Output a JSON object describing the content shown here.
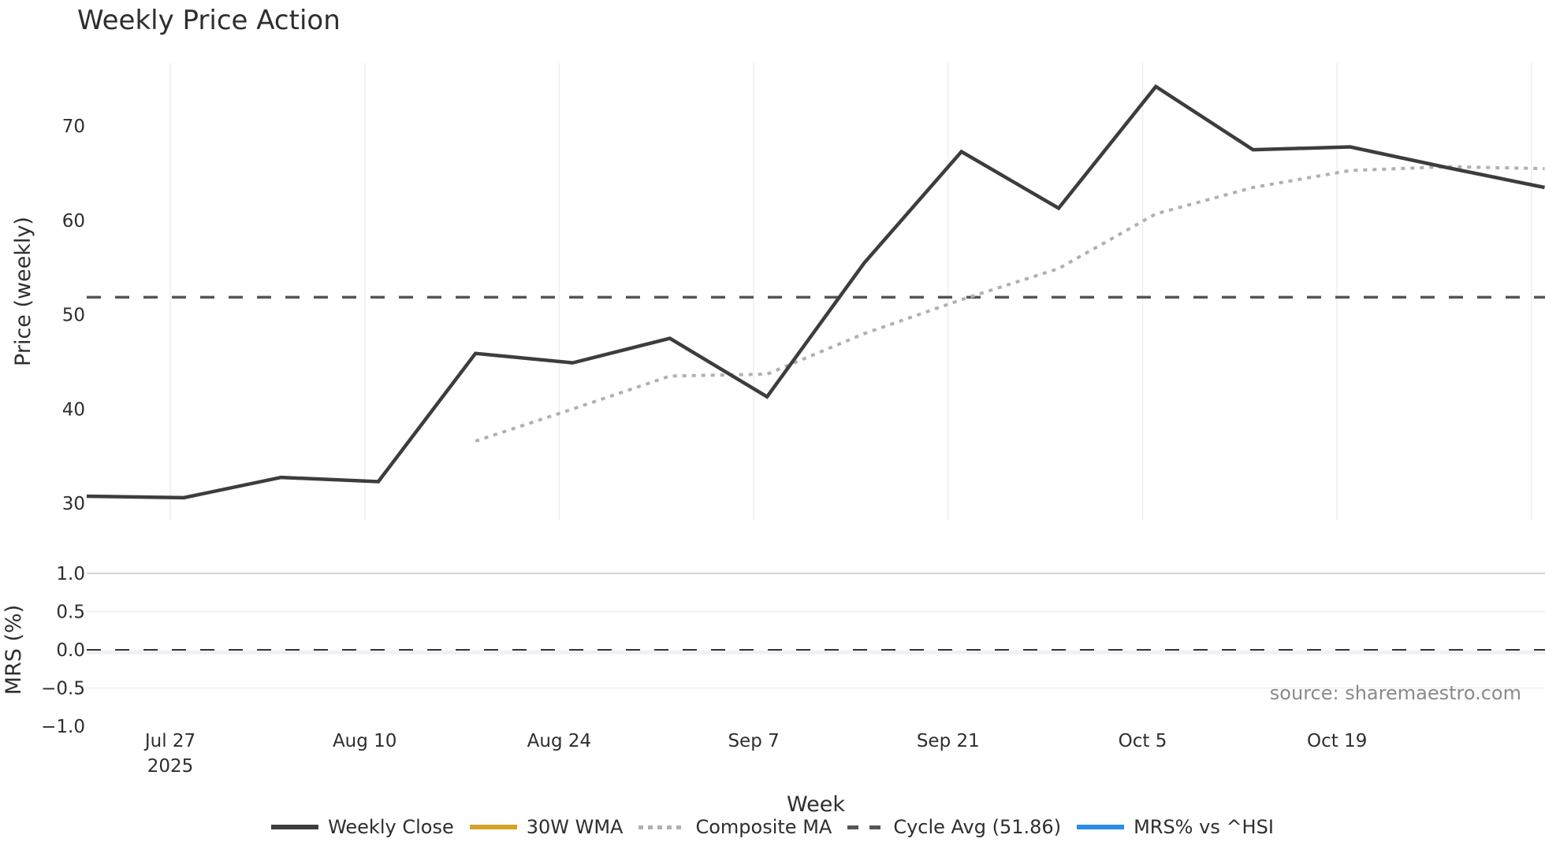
{
  "title": "Weekly Price Action",
  "source": "source: sharemaestro.com",
  "xlabel": "Week",
  "colors": {
    "weekly_close": "#3d3d3d",
    "wma30": "#d4a12a",
    "composite_ma": "#b0b0b0",
    "cycle_avg": "#555555",
    "mrs": "#2a8ce6",
    "grid": "#eceef1"
  },
  "legend": [
    {
      "label": "Weekly Close",
      "style": "solid",
      "color": "#3d3d3d"
    },
    {
      "label": "30W WMA",
      "style": "solid",
      "color": "#d4a12a"
    },
    {
      "label": "Composite MA",
      "style": "dotted",
      "color": "#b0b0b0"
    },
    {
      "label": "Cycle Avg (51.86)",
      "style": "dashed",
      "color": "#555555"
    },
    {
      "label": "MRS% vs ^HSI",
      "style": "solid",
      "color": "#2a8ce6"
    }
  ],
  "chart_data": [
    {
      "type": "line",
      "title": "Weekly Price Action",
      "xlabel": "Week",
      "ylabel": "Price (weekly)",
      "ylim": [
        27.5,
        76
      ],
      "yticks": [
        30,
        40,
        50,
        60,
        70
      ],
      "xticks": [
        {
          "label": "Jul 27",
          "sub": "2025",
          "date": "2025-07-27"
        },
        {
          "label": "Aug 10",
          "date": "2025-08-10"
        },
        {
          "label": "Aug 24",
          "date": "2025-08-24"
        },
        {
          "label": "Sep 7",
          "date": "2025-09-07"
        },
        {
          "label": "Sep 21",
          "date": "2025-09-21"
        },
        {
          "label": "Oct 5",
          "date": "2025-10-05"
        },
        {
          "label": "Oct 19",
          "date": "2025-10-19"
        },
        {
          "label": "",
          "date": "2025-11-02"
        }
      ],
      "grid": true,
      "legend_position": "bottom",
      "x": [
        "2025-07-21",
        "2025-07-28",
        "2025-08-04",
        "2025-08-11",
        "2025-08-18",
        "2025-08-25",
        "2025-09-01",
        "2025-09-08",
        "2025-09-15",
        "2025-09-22",
        "2025-09-29",
        "2025-10-06",
        "2025-10-13",
        "2025-10-20",
        "2025-10-27",
        "2025-11-03"
      ],
      "series": [
        {
          "name": "Weekly Close",
          "style": "solid",
          "values": [
            30.75,
            30.6,
            32.75,
            32.3,
            45.9,
            44.9,
            47.5,
            41.3,
            55.5,
            67.3,
            61.3,
            74.2,
            67.5,
            67.8,
            65.6,
            63.5
          ]
        },
        {
          "name": "30W WMA",
          "style": "solid",
          "values": []
        },
        {
          "name": "Composite MA",
          "style": "dotted",
          "values": [
            null,
            null,
            null,
            null,
            36.6,
            40.0,
            43.5,
            43.7,
            48.0,
            51.6,
            54.9,
            60.7,
            63.5,
            65.3,
            65.7,
            65.5
          ]
        },
        {
          "name": "Cycle Avg (51.86)",
          "style": "dashed",
          "constant": 51.86
        }
      ]
    },
    {
      "type": "line",
      "ylabel": "MRS (%)",
      "ylim": [
        -1.0,
        1.0
      ],
      "yticks": [
        "1.0",
        "0.5",
        "0.0",
        "−0.5",
        "−1.0"
      ],
      "series": [
        {
          "name": "MRS% vs ^HSI",
          "values": []
        },
        {
          "name": "Zero line",
          "style": "dashed",
          "constant": 0.0
        }
      ]
    }
  ]
}
